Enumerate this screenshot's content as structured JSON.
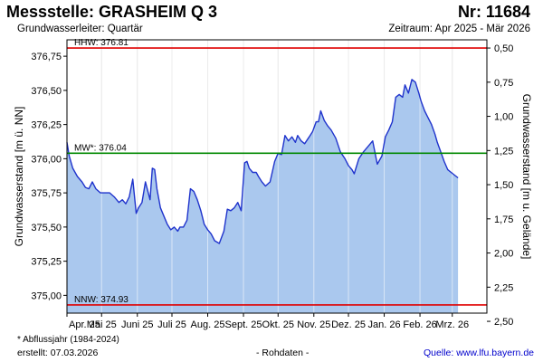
{
  "header": {
    "title": "Messstelle: GRASHEIM Q 3",
    "number": "Nr: 11684",
    "aquifer": "Grundwasserleiter: Quartär",
    "period": "Zeitraum: Apr 2025 - Mär 2026"
  },
  "footer": {
    "footnote": "* Abflussjahr (1984-2024)",
    "created": "erstellt:  07.03.2026",
    "rawdata": "- Rohdaten -",
    "source": "Quelle:  www.lfu.bayern.de"
  },
  "colors": {
    "fill": "#aac8ee",
    "line": "#1f33cc",
    "reference_high": "#e00000",
    "reference_mean": "#008800",
    "reference_low": "#e00000",
    "grid": "#d6d6d6"
  },
  "chart_data": {
    "type": "area",
    "ylabel": "Grundwasserstand [m ü. NN]",
    "y2label": "Grundwasserstand [m u. Gelände]",
    "ylim": [
      374.87,
      376.87
    ],
    "y_ticks": [
      "376,75",
      "376,50",
      "376,25",
      "376,00",
      "375,75",
      "375,50",
      "375,25",
      "375,00"
    ],
    "y_tick_values": [
      376.75,
      376.5,
      376.25,
      376.0,
      375.75,
      375.5,
      375.25,
      375.0
    ],
    "y2_ticks": [
      "0,50",
      "0,75",
      "1,00",
      "1,25",
      "1,50",
      "1,75",
      "2,00",
      "2,25",
      "2,50"
    ],
    "y2_tick_values": [
      0.5,
      0.75,
      1.0,
      1.25,
      1.5,
      1.75,
      2.0,
      2.25,
      2.5
    ],
    "ground_level": 377.31,
    "x_start": "2025-04-01",
    "x_end": "2026-03-31",
    "x_ticks": [
      "Apr. 25",
      "Mai 25",
      "Juni 25",
      "Juli 25",
      "Aug. 25",
      "Sept. 25",
      "Okt. 25",
      "Nov. 25",
      "Dez. 25",
      "Jan. 26",
      "Feb. 26",
      "Mrz. 26"
    ],
    "x_tick_dates": [
      "2025-04-01",
      "2025-05-01",
      "2025-06-01",
      "2025-07-01",
      "2025-08-01",
      "2025-09-01",
      "2025-10-01",
      "2025-11-01",
      "2025-12-01",
      "2026-01-01",
      "2026-02-01",
      "2026-03-01"
    ],
    "grid": true,
    "reference_lines": [
      {
        "label": "HHW: 376.81",
        "value": 376.81
      },
      {
        "label": "MW*: 376.04",
        "value": 376.04
      },
      {
        "label": "NNW: 374.93",
        "value": 374.93
      }
    ],
    "series": [
      {
        "dates": [
          "2025-04-01",
          "2025-04-03",
          "2025-04-06",
          "2025-04-10",
          "2025-04-14",
          "2025-04-17",
          "2025-04-20",
          "2025-04-23",
          "2025-04-26",
          "2025-04-30",
          "2025-05-04",
          "2025-05-08",
          "2025-05-12",
          "2025-05-16",
          "2025-05-19",
          "2025-05-22",
          "2025-05-25",
          "2025-05-28",
          "2025-05-31",
          "2025-06-02",
          "2025-06-05",
          "2025-06-08",
          "2025-06-12",
          "2025-06-14",
          "2025-06-16",
          "2025-06-18",
          "2025-06-21",
          "2025-06-24",
          "2025-06-27",
          "2025-06-30",
          "2025-07-03",
          "2025-07-06",
          "2025-07-08",
          "2025-07-11",
          "2025-07-14",
          "2025-07-17",
          "2025-07-20",
          "2025-07-23",
          "2025-07-26",
          "2025-07-29",
          "2025-08-01",
          "2025-08-04",
          "2025-08-07",
          "2025-08-11",
          "2025-08-15",
          "2025-08-18",
          "2025-08-21",
          "2025-08-24",
          "2025-08-27",
          "2025-08-30",
          "2025-09-02",
          "2025-09-04",
          "2025-09-06",
          "2025-09-09",
          "2025-09-12",
          "2025-09-14",
          "2025-09-17",
          "2025-09-20",
          "2025-09-24",
          "2025-09-28",
          "2025-10-01",
          "2025-10-04",
          "2025-10-07",
          "2025-10-10",
          "2025-10-13",
          "2025-10-16",
          "2025-10-18",
          "2025-10-21",
          "2025-10-24",
          "2025-10-28",
          "2025-10-31",
          "2025-11-03",
          "2025-11-05",
          "2025-11-07",
          "2025-11-10",
          "2025-11-13",
          "2025-11-16",
          "2025-11-20",
          "2025-11-24",
          "2025-11-28",
          "2025-12-01",
          "2025-12-04",
          "2025-12-06",
          "2025-12-10",
          "2025-12-14",
          "2025-12-18",
          "2025-12-22",
          "2025-12-26",
          "2025-12-30",
          "2026-01-02",
          "2026-01-05",
          "2026-01-08",
          "2026-01-11",
          "2026-01-14",
          "2026-01-17",
          "2026-01-19",
          "2026-01-22",
          "2026-01-25",
          "2026-01-28",
          "2026-01-31",
          "2026-02-02",
          "2026-02-05",
          "2026-02-08",
          "2026-02-11",
          "2026-02-14",
          "2026-02-16",
          "2026-02-19",
          "2026-02-22",
          "2026-02-25",
          "2026-02-28",
          "2026-03-03",
          "2026-03-06"
        ],
        "values": [
          376.12,
          376.02,
          375.93,
          375.87,
          375.83,
          375.79,
          375.78,
          375.83,
          375.78,
          375.75,
          375.75,
          375.75,
          375.72,
          375.68,
          375.7,
          375.67,
          375.72,
          375.85,
          375.6,
          375.64,
          375.68,
          375.83,
          375.7,
          375.93,
          375.92,
          375.78,
          375.64,
          375.58,
          375.52,
          375.48,
          375.5,
          375.47,
          375.5,
          375.5,
          375.55,
          375.78,
          375.76,
          375.7,
          375.62,
          375.52,
          375.48,
          375.45,
          375.4,
          375.38,
          375.47,
          375.63,
          375.62,
          375.64,
          375.68,
          375.62,
          375.97,
          375.98,
          375.93,
          375.9,
          375.9,
          375.87,
          375.83,
          375.8,
          375.83,
          375.98,
          376.04,
          376.03,
          376.17,
          376.13,
          376.16,
          376.12,
          376.17,
          376.13,
          376.11,
          376.16,
          376.2,
          376.27,
          376.27,
          376.35,
          376.28,
          376.24,
          376.21,
          376.15,
          376.05,
          376.0,
          375.95,
          375.92,
          375.89,
          376.0,
          376.05,
          376.09,
          376.13,
          375.96,
          376.02,
          376.16,
          376.21,
          376.27,
          376.45,
          376.47,
          376.45,
          376.54,
          376.48,
          376.58,
          376.56,
          376.48,
          376.42,
          376.35,
          376.3,
          376.25,
          376.18,
          376.12,
          376.05,
          375.98,
          375.92,
          375.9,
          375.88,
          375.86
        ]
      }
    ]
  }
}
